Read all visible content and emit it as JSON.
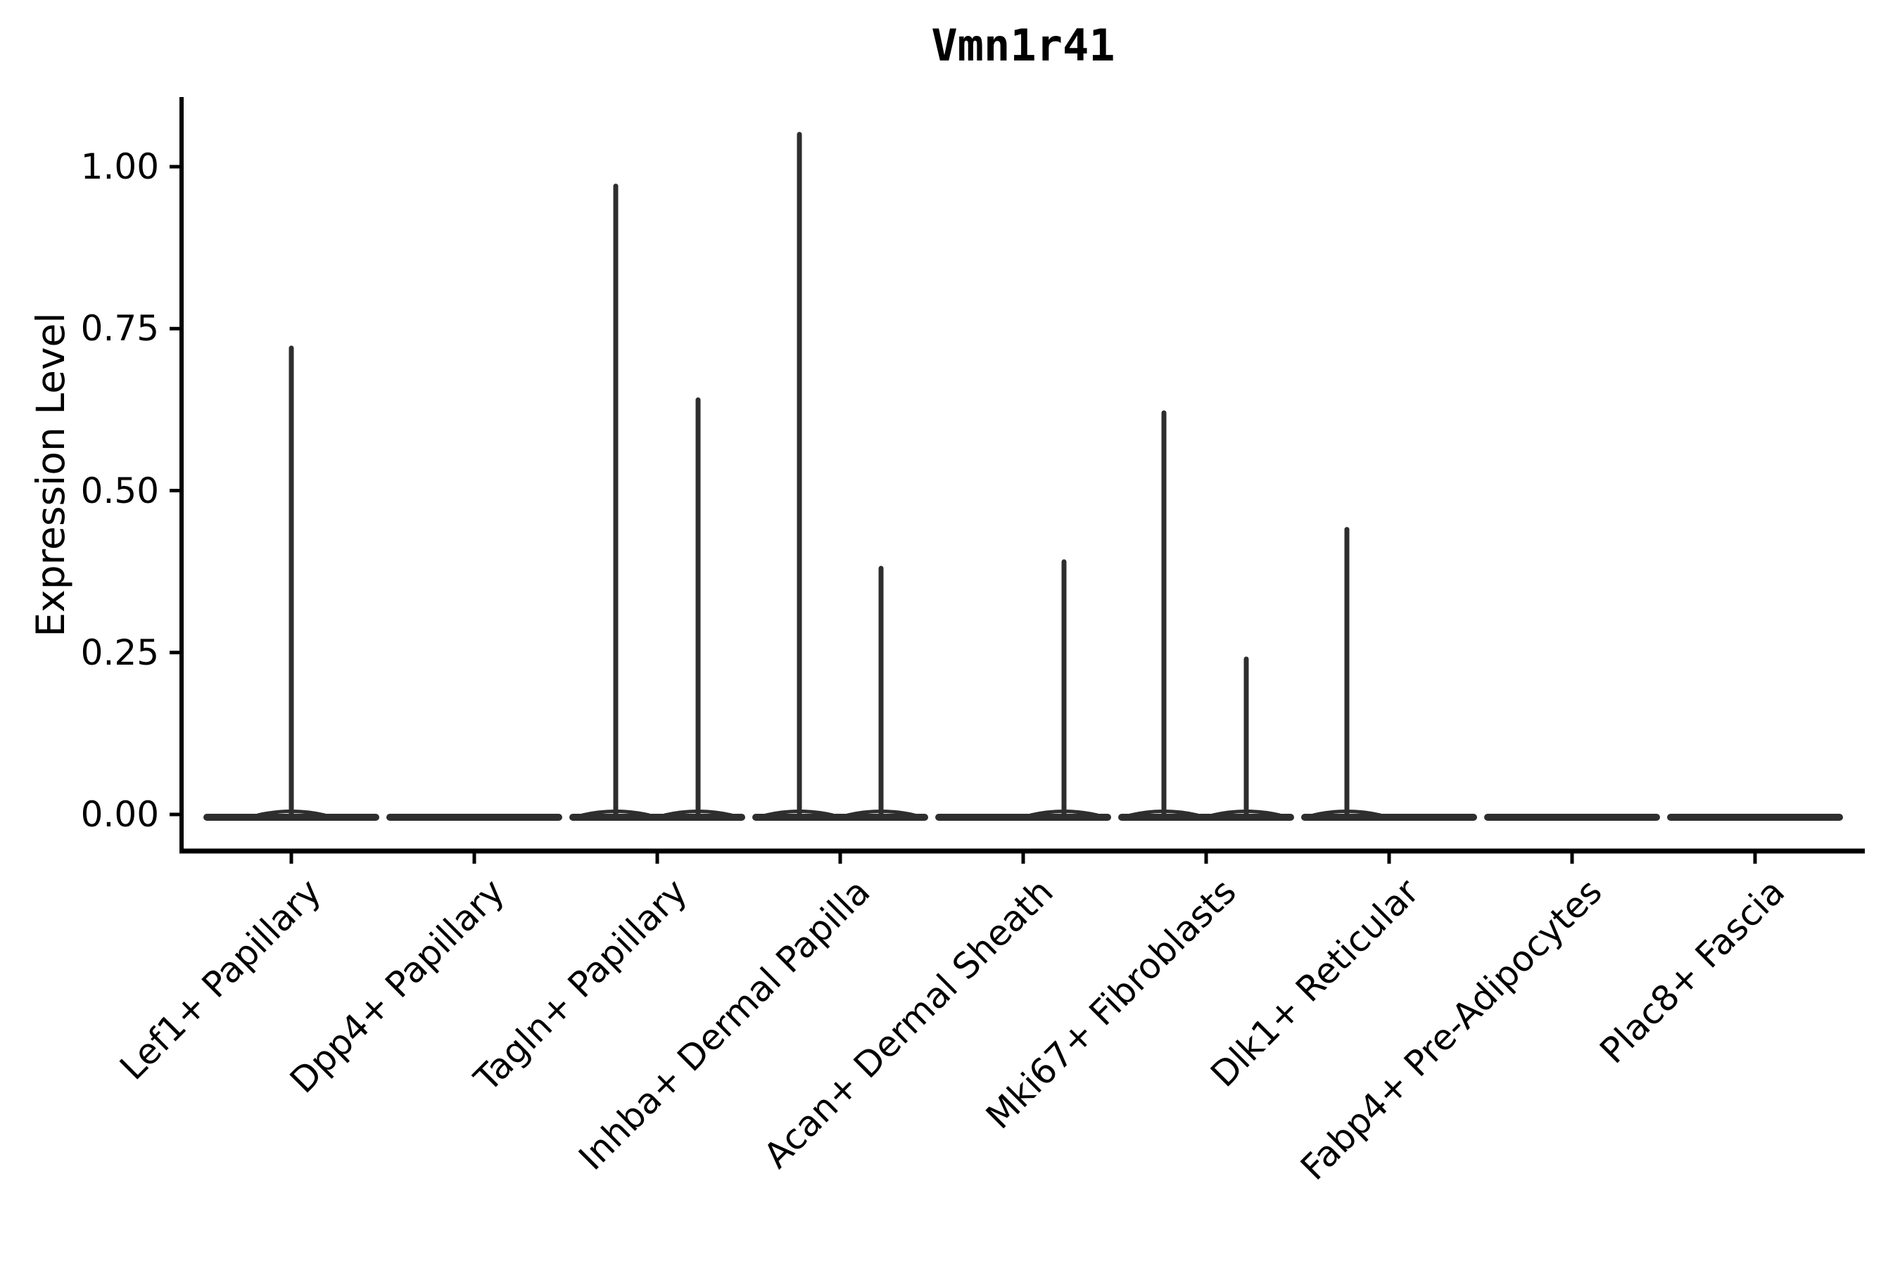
{
  "title": "Vmn1r41",
  "y_axis": {
    "label": "Expression Level",
    "tick_labels": [
      "0.00",
      "0.25",
      "0.50",
      "0.75",
      "1.00"
    ]
  },
  "chart_data": {
    "type": "violin",
    "title": "Vmn1r41",
    "xlabel": "",
    "ylabel": "Expression Level",
    "ylim": [
      -0.05,
      1.1
    ],
    "y_tick_values": [
      0,
      0.25,
      0.5,
      0.75,
      1.0
    ],
    "grid": false,
    "legend_position": "none",
    "categories": [
      "Lef1+ Papillary",
      "Dpp4+ Papillary",
      "Tagln+ Papillary",
      "Inhba+ Dermal Papilla",
      "Acan+ Dermal Sheath",
      "Mki67+ Fibroblasts",
      "Dlk1+ Reticular",
      "Fabp4+ Pre-Adipocytes",
      "Plac8+ Fascia"
    ],
    "violins": [
      {
        "category": "Lef1+ Papillary",
        "zero_body": true,
        "spikes": [
          {
            "offset": 0,
            "value": 0.72
          }
        ]
      },
      {
        "category": "Dpp4+ Papillary",
        "zero_body": true,
        "spikes": []
      },
      {
        "category": "Tagln+ Papillary",
        "zero_body": true,
        "spikes": [
          {
            "offset": -59,
            "value": 0.97
          },
          {
            "offset": 58,
            "value": 0.64
          }
        ]
      },
      {
        "category": "Inhba+ Dermal Papilla",
        "zero_body": true,
        "spikes": [
          {
            "offset": -58,
            "value": 1.05
          },
          {
            "offset": 58,
            "value": 0.38
          }
        ]
      },
      {
        "category": "Acan+ Dermal Sheath",
        "zero_body": true,
        "spikes": [
          {
            "offset": 58,
            "value": 0.39
          }
        ]
      },
      {
        "category": "Mki67+ Fibroblasts",
        "zero_body": true,
        "spikes": [
          {
            "offset": -60,
            "value": 0.62
          },
          {
            "offset": 57,
            "value": 0.24
          }
        ]
      },
      {
        "category": "Dlk1+ Reticular",
        "zero_body": true,
        "spikes": [
          {
            "offset": -60,
            "value": 0.44
          }
        ]
      },
      {
        "category": "Fabp4+ Pre-Adipocytes",
        "zero_body": true,
        "spikes": []
      },
      {
        "category": "Plac8+ Fascia",
        "zero_body": true,
        "spikes": []
      }
    ],
    "colors": {
      "violin": "#2e2e2e",
      "axis": "#000000",
      "text": "#000000",
      "background": "#ffffff"
    }
  }
}
